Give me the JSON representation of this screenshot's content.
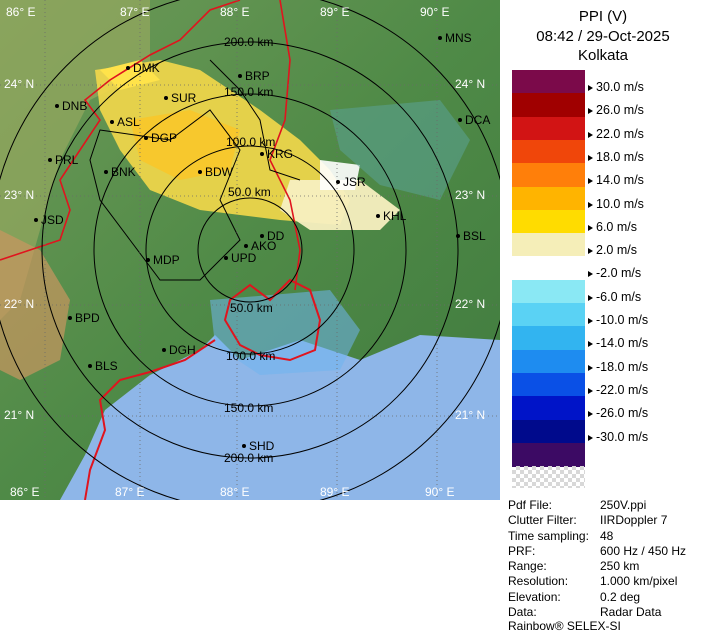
{
  "header": {
    "product": "PPI (V)",
    "datetime": "08:42 / 29-Oct-2025",
    "station": "Kolkata"
  },
  "legend": [
    {
      "label": "30.0 m/s",
      "color": "#7b0a4a"
    },
    {
      "label": "26.0 m/s",
      "color": "#a00000"
    },
    {
      "label": "22.0 m/s",
      "color": "#d21414"
    },
    {
      "label": "18.0 m/s",
      "color": "#f0460a"
    },
    {
      "label": "14.0 m/s",
      "color": "#ff7f0a"
    },
    {
      "label": "10.0 m/s",
      "color": "#ffb400"
    },
    {
      "label": "6.0 m/s",
      "color": "#ffdc00"
    },
    {
      "label": "2.0 m/s",
      "color": "#f5eeb8"
    },
    {
      "label": "-2.0 m/s",
      "color": "#ffffff"
    },
    {
      "label": "-6.0 m/s",
      "color": "#8ae8f4"
    },
    {
      "label": "-10.0 m/s",
      "color": "#5ad2f4"
    },
    {
      "label": "-14.0 m/s",
      "color": "#32b4f0"
    },
    {
      "label": "-18.0 m/s",
      "color": "#1e8cf0"
    },
    {
      "label": "-22.0 m/s",
      "color": "#0a50e6"
    },
    {
      "label": "-26.0 m/s",
      "color": "#0014c8"
    },
    {
      "label": "-30.0 m/s",
      "color": "#000a8c"
    },
    {
      "label": "",
      "color": "#3c0a64"
    }
  ],
  "info": [
    {
      "key": "Pdf File:",
      "value": "250V.ppi"
    },
    {
      "key": "Clutter Filter:",
      "value": "IIRDoppler 7"
    },
    {
      "key": "Time sampling:",
      "value": "48"
    },
    {
      "key": "PRF:",
      "value": "600 Hz / 450 Hz"
    },
    {
      "key": "Range:",
      "value": "250 km"
    },
    {
      "key": "Resolution:",
      "value": "1.000 km/pixel"
    },
    {
      "key": "Elevation:",
      "value": "0.2 deg"
    },
    {
      "key": "Data:",
      "value": "Radar Data"
    }
  ],
  "footer": "Rainbow® SELEX-SI",
  "map": {
    "lon_labels": [
      "86° E",
      "87° E",
      "88° E",
      "89° E",
      "90° E"
    ],
    "lat_labels": [
      "24° N",
      "23° N",
      "22° N",
      "21° N"
    ],
    "range_labels": [
      "50.0 km",
      "100.0 km",
      "150.0 km",
      "200.0 km"
    ],
    "stations": [
      "MNS",
      "DMK",
      "BRP",
      "DNB",
      "SUR",
      "DCA",
      "ASL",
      "DGP",
      "KRG",
      "PRL",
      "BNK",
      "BDW",
      "JSR",
      "JSD",
      "KHL",
      "DD",
      "BSL",
      "AKO",
      "MDP",
      "UPD",
      "BPD",
      "DGH",
      "BLS",
      "SHD"
    ]
  }
}
